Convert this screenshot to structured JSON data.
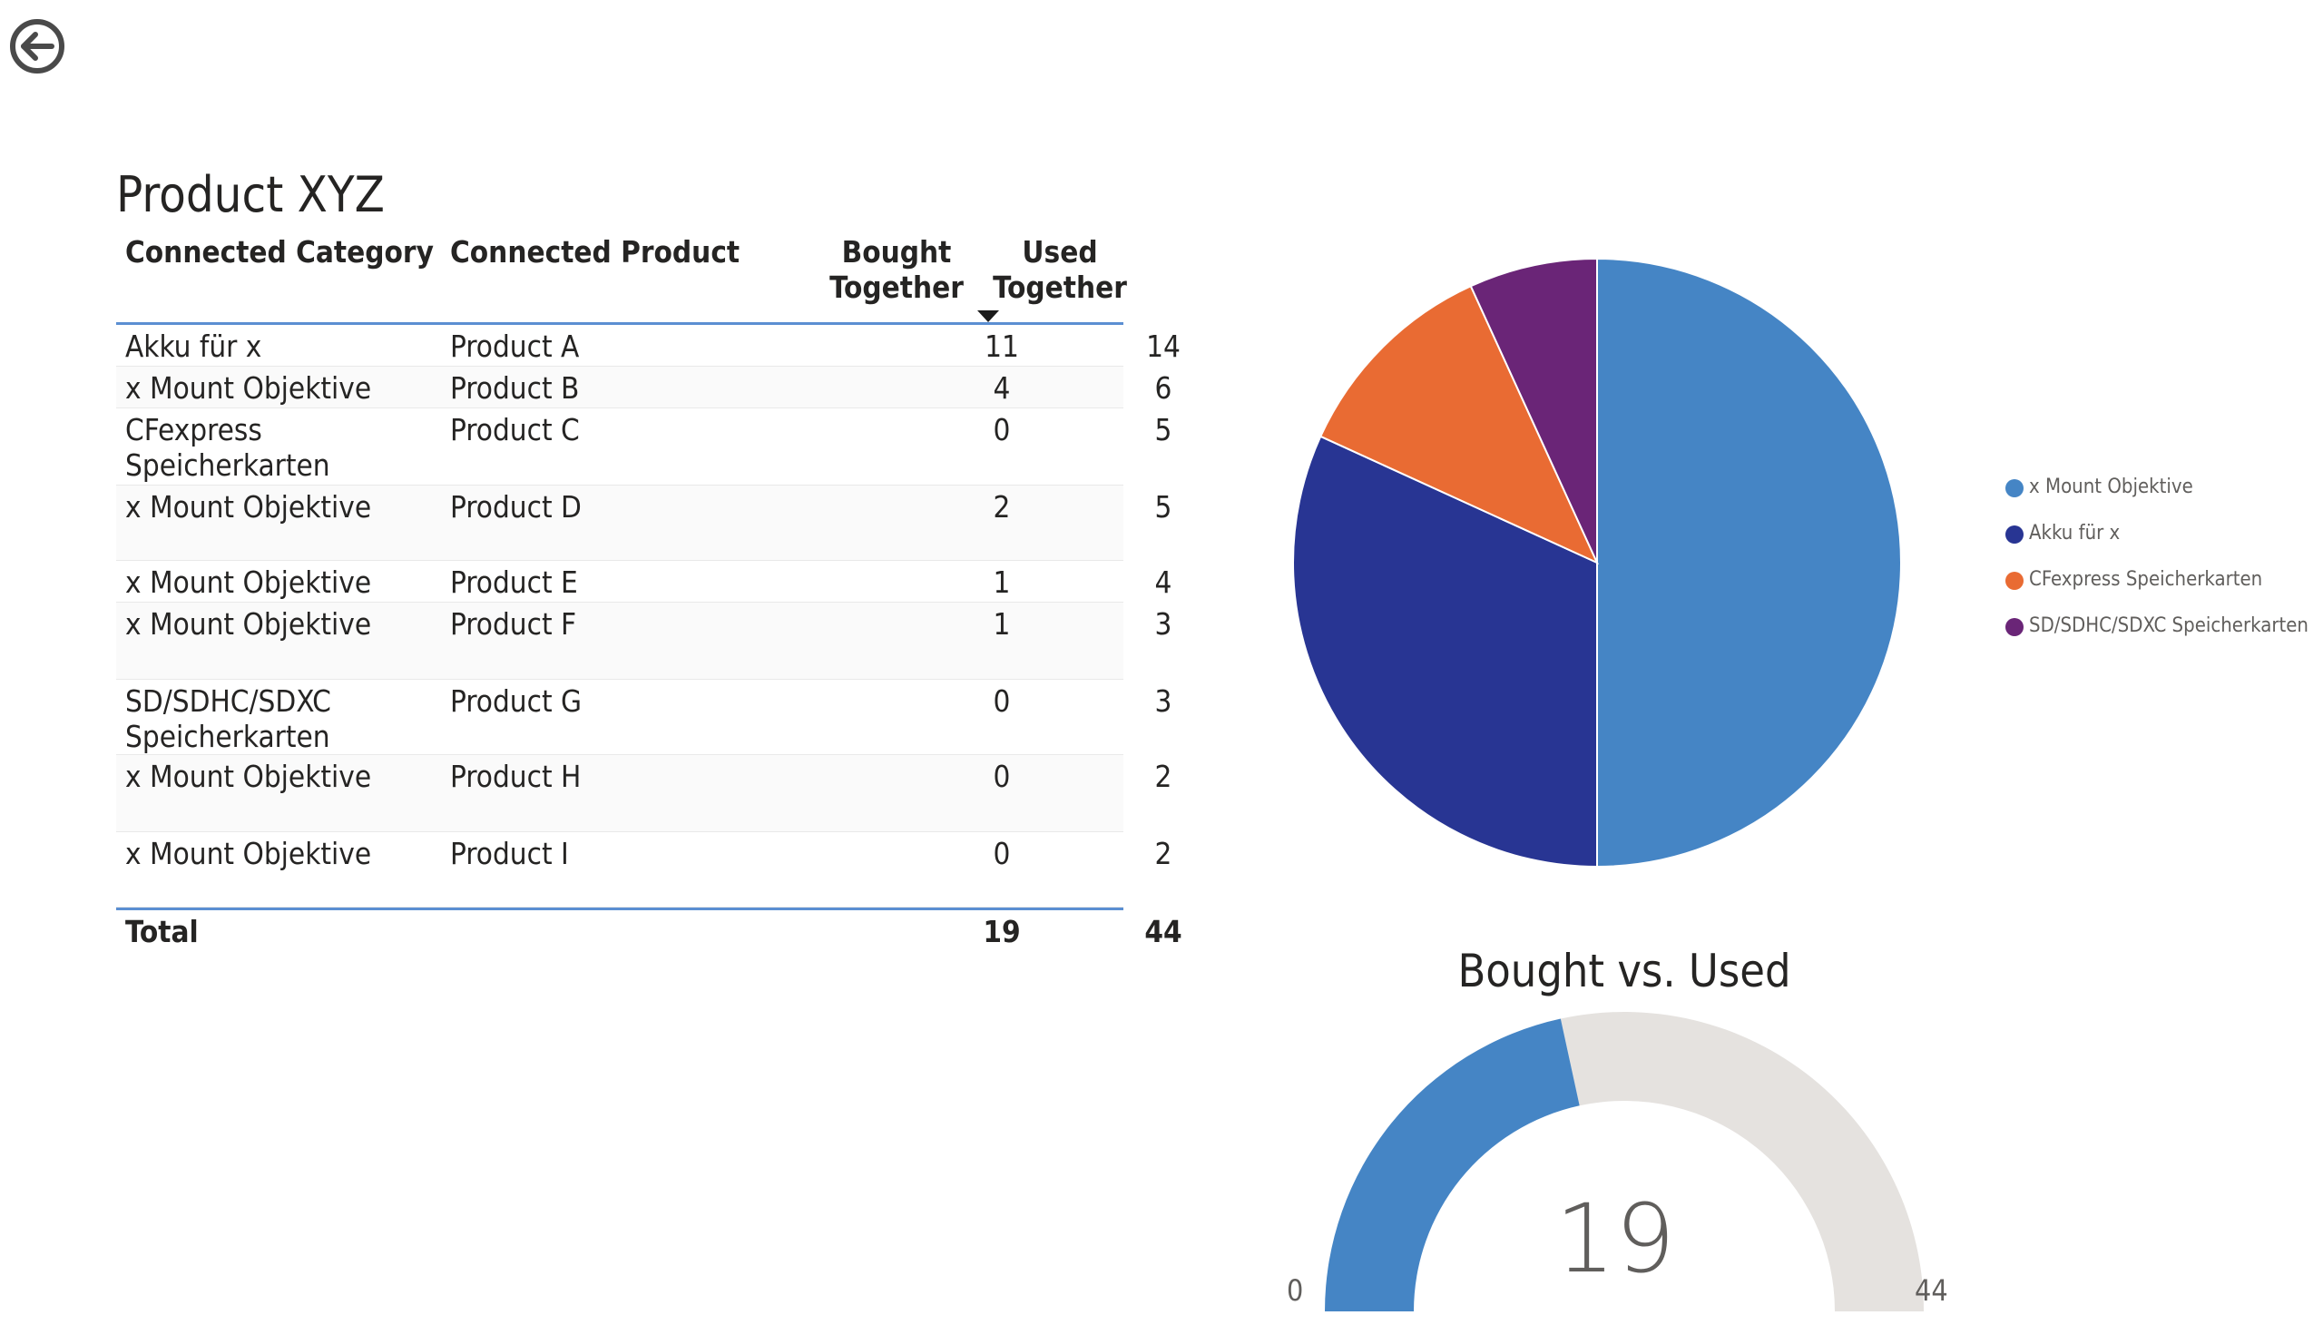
{
  "back_button": {
    "icon": "arrow-left-circle-icon"
  },
  "table": {
    "title": "Product XYZ",
    "headers": {
      "category": "Connected Category",
      "product": "Connected Product",
      "bought_line1": "Bought",
      "bought_line2": "Together",
      "used_line1": "Used",
      "used_line2": "Together"
    },
    "sort_indicator": "sorted-descending-icon",
    "rows": [
      {
        "category": "Akku für x",
        "product": "Product A",
        "bought": "11",
        "used": "14"
      },
      {
        "category": "x Mount Objektive",
        "product": "Product B",
        "bought": "4",
        "used": "6"
      },
      {
        "category": "CFexpress Speicherkarten",
        "product": "Product C",
        "bought": "0",
        "used": "5"
      },
      {
        "category": "x Mount Objektive",
        "product": "Product D",
        "bought": "2",
        "used": "5"
      },
      {
        "category": "x Mount Objektive",
        "product": "Product E",
        "bought": "1",
        "used": "4"
      },
      {
        "category": "x Mount Objektive",
        "product": "Product F",
        "bought": "1",
        "used": "3"
      },
      {
        "category": "SD/SDHC/SDXC Speicherkarten",
        "product": "Product G",
        "bought": "0",
        "used": "3"
      },
      {
        "category": "x Mount Objektive",
        "product": "Product H",
        "bought": "0",
        "used": "2"
      },
      {
        "category": "x Mount Objektive",
        "product": "Product I",
        "bought": "0",
        "used": "2"
      }
    ],
    "total": {
      "label": "Total",
      "bought": "19",
      "used": "44"
    }
  },
  "pie": {
    "slices": [
      {
        "name": "x Mount Objektive",
        "value": 22,
        "color": "#4585c5"
      },
      {
        "name": "Akku für x",
        "value": 14,
        "color": "#283593"
      },
      {
        "name": "CFexpress Speicherkarten",
        "value": 5,
        "color": "#e96b33"
      },
      {
        "name": "SD/SDHC/SDXC Speicherkarten",
        "value": 3,
        "color": "#6a2577"
      }
    ]
  },
  "gauge": {
    "title": "Bought vs. Used",
    "value": 19,
    "value_label": "19",
    "min": 0,
    "min_label": "0",
    "max": 44,
    "max_label": "44",
    "fill_color": "#4585c5",
    "track_color": "#e5e2df"
  }
}
